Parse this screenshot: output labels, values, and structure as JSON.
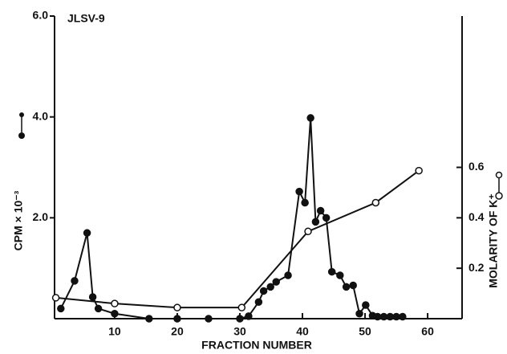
{
  "chart_data": {
    "type": "line",
    "title": "JLSV-9",
    "xlabel": "FRACTION NUMBER",
    "ylabel": "CPM × 10⁻³",
    "y2label": "MOLARITY OF K⁺",
    "xlim": [
      0.4,
      65.5
    ],
    "xticks": [
      10,
      20,
      30,
      40,
      50,
      60
    ],
    "ylim": [
      0,
      6
    ],
    "yticks": [
      {
        "value": 2,
        "label": "2.0"
      },
      {
        "value": 4,
        "label": "4.0"
      },
      {
        "value": 6,
        "label": "6.0"
      }
    ],
    "y2lim": [
      0,
      1.2
    ],
    "y2ticks": [
      0.2,
      0.4,
      0.6
    ],
    "series": [
      {
        "marker": "filled",
        "color": "#111111",
        "x": [
          1.4,
          3.6,
          5.6,
          6.5,
          7.4,
          10,
          15.5,
          20,
          25,
          30,
          31.4,
          33,
          33.8,
          34.9,
          35.8,
          37.7,
          39.5,
          40.4,
          41.3,
          42.1,
          42.9,
          43.8,
          44.7,
          46,
          47,
          48.1,
          49.1,
          50.1,
          51.2,
          52,
          53,
          54,
          55,
          56
        ],
        "values": [
          0.2,
          0.75,
          1.7,
          0.43,
          0.2,
          0.1,
          0,
          0,
          0,
          0,
          0.05,
          0.33,
          0.55,
          0.63,
          0.73,
          0.86,
          2.52,
          2.3,
          3.98,
          1.92,
          2.14,
          2.0,
          0.93,
          0.86,
          0.63,
          0.66,
          0.1,
          0.27,
          0.06,
          0.04,
          0.04,
          0.04,
          0.04,
          0.04
        ]
      },
      {
        "marker": "open",
        "color": "#111111",
        "axis": "y2",
        "x": [
          0.6,
          10,
          20,
          30.3,
          40.9,
          51.7,
          58.6
        ],
        "values": [
          0.083,
          0.06,
          0.044,
          0.044,
          0.346,
          0.46,
          0.587
        ]
      }
    ]
  }
}
